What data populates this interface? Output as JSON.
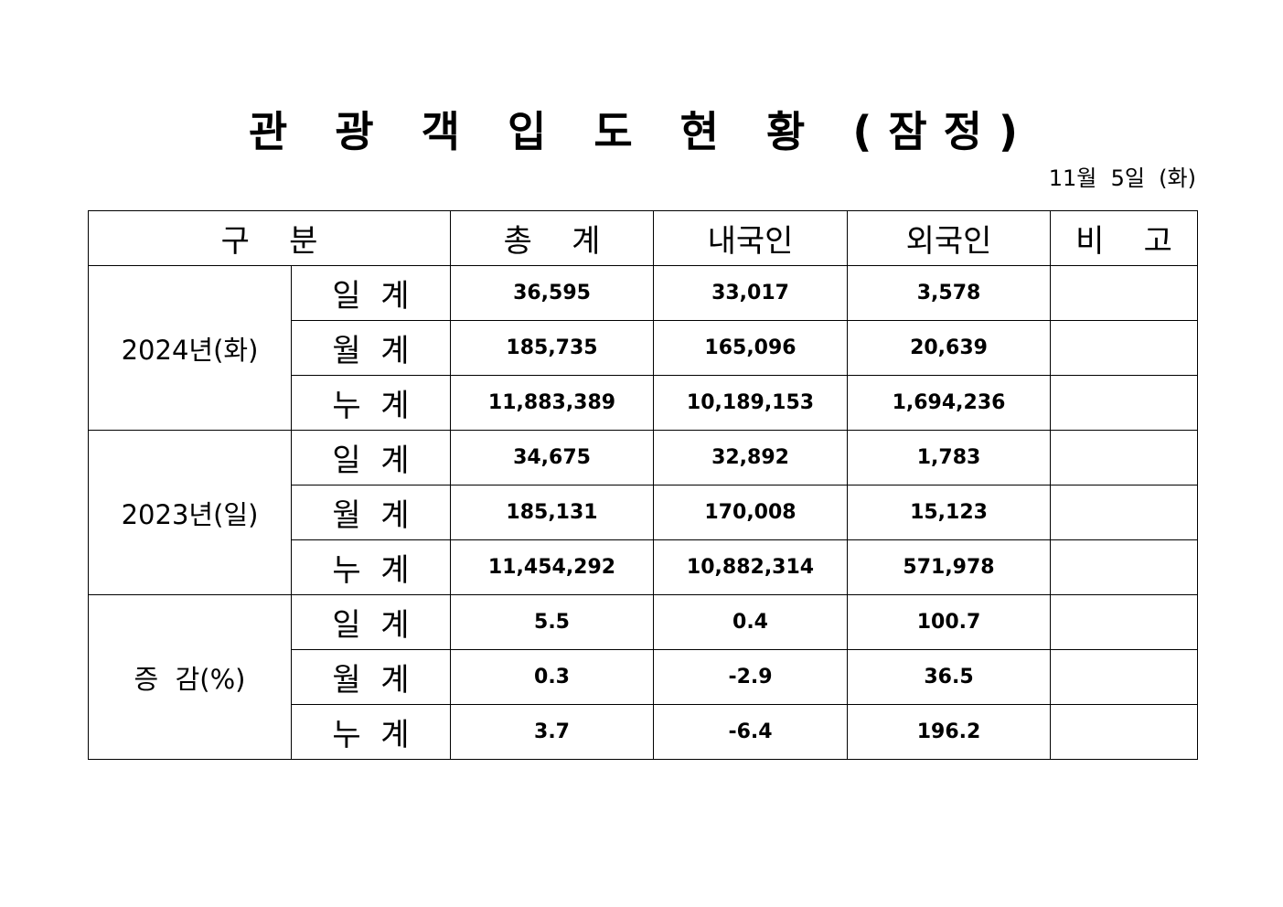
{
  "title": "관 광 객 입 도 현 황 (잠정)",
  "date": "11월  5일  (화)",
  "table": {
    "headers": [
      "구    분",
      "총    계",
      "내국인",
      "외국인",
      "비    고"
    ],
    "groups": [
      {
        "label": "2024년(화)",
        "rows": [
          {
            "label": "일  계",
            "total": "36,595",
            "domestic": "33,017",
            "foreign": "3,578",
            "note": ""
          },
          {
            "label": "월  계",
            "total": "185,735",
            "domestic": "165,096",
            "foreign": "20,639",
            "note": ""
          },
          {
            "label": "누  계",
            "total": "11,883,389",
            "domestic": "10,189,153",
            "foreign": "1,694,236",
            "note": ""
          }
        ]
      },
      {
        "label": "2023년(일)",
        "rows": [
          {
            "label": "일  계",
            "total": "34,675",
            "domestic": "32,892",
            "foreign": "1,783",
            "note": ""
          },
          {
            "label": "월  계",
            "total": "185,131",
            "domestic": "170,008",
            "foreign": "15,123",
            "note": ""
          },
          {
            "label": "누  계",
            "total": "11,454,292",
            "domestic": "10,882,314",
            "foreign": "571,978",
            "note": ""
          }
        ]
      },
      {
        "label": "증  감(%)",
        "rows": [
          {
            "label": "일  계",
            "total": "5.5",
            "domestic": "0.4",
            "foreign": "100.7",
            "note": ""
          },
          {
            "label": "월  계",
            "total": "0.3",
            "domestic": "-2.9",
            "foreign": "36.5",
            "note": ""
          },
          {
            "label": "누  계",
            "total": "3.7",
            "domestic": "-6.4",
            "foreign": "196.2",
            "note": ""
          }
        ]
      }
    ]
  }
}
